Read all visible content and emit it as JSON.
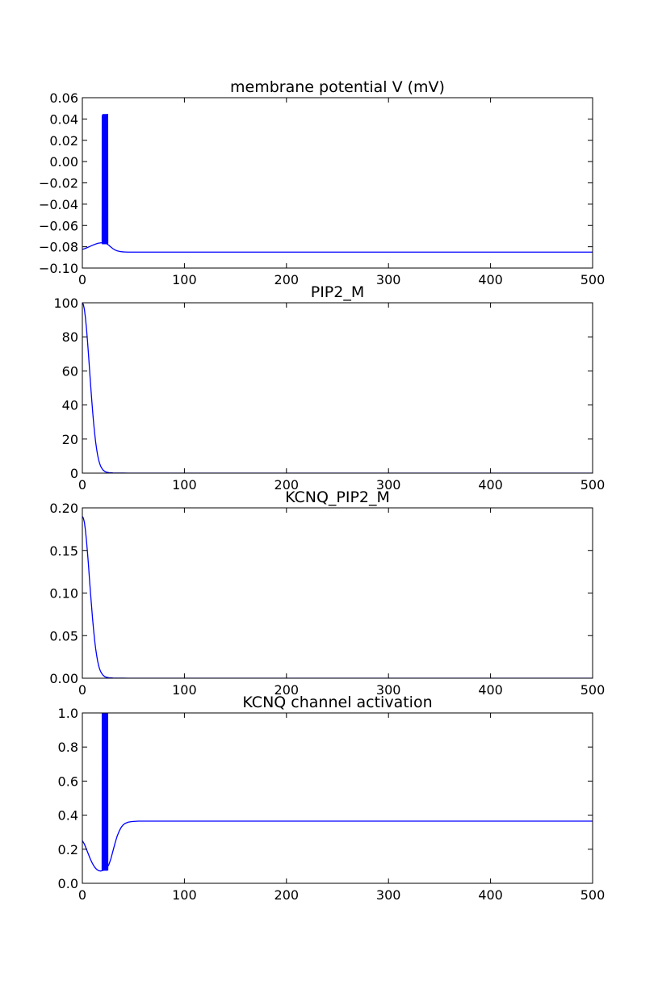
{
  "figure": {
    "line_color": "#0000ff",
    "background": "#ffffff",
    "axis_color": "#000000"
  },
  "chart_data": [
    {
      "type": "line",
      "title": "membrane potential V (mV)",
      "xlim": [
        0,
        500
      ],
      "ylim": [
        -0.1,
        0.06
      ],
      "xticks": [
        0,
        100,
        200,
        300,
        400,
        500
      ],
      "yticks": [
        -0.1,
        -0.08,
        -0.06,
        -0.04,
        -0.02,
        0.0,
        0.02,
        0.04,
        0.06
      ],
      "xtick_labels": [
        "0",
        "100",
        "200",
        "300",
        "400",
        "500"
      ],
      "ytick_labels": [
        "−0.10",
        "−0.08",
        "−0.06",
        "−0.04",
        "−0.02",
        "0.00",
        "0.02",
        "0.04",
        "0.06"
      ],
      "grid": false,
      "series": [
        {
          "x": [
            0,
            3,
            6,
            9,
            12,
            15,
            18,
            20,
            21,
            22,
            23,
            24,
            25,
            26,
            27,
            28,
            30,
            32,
            34,
            36,
            38,
            40,
            42,
            45,
            48,
            50,
            55,
            60,
            80,
            100,
            150,
            200,
            250,
            300,
            350,
            400,
            450,
            500
          ],
          "y": [
            -0.0825,
            -0.0815,
            -0.0803,
            -0.079,
            -0.0778,
            -0.0768,
            -0.0763,
            -0.0763,
            -0.0764,
            -0.0766,
            -0.0769,
            -0.0773,
            -0.0779,
            -0.0786,
            -0.0795,
            -0.0803,
            -0.0818,
            -0.083,
            -0.0838,
            -0.0843,
            -0.0846,
            -0.0848,
            -0.0849,
            -0.085,
            -0.085,
            -0.085,
            -0.085,
            -0.085,
            -0.085,
            -0.085,
            -0.085,
            -0.085,
            -0.085,
            -0.085,
            -0.085,
            -0.085,
            -0.085,
            -0.085
          ]
        },
        {
          "type": "spikes",
          "x_start": 19.5,
          "x_end": 24.5,
          "count": 9,
          "y_low": -0.077,
          "y_high": [
            0.043,
            0.044,
            0.042,
            0.044,
            0.043,
            0.044,
            0.043,
            0.044,
            0.044
          ]
        }
      ]
    },
    {
      "type": "line",
      "title": "PIP2_M",
      "xlim": [
        0,
        500
      ],
      "ylim": [
        0,
        100
      ],
      "xticks": [
        0,
        100,
        200,
        300,
        400,
        500
      ],
      "yticks": [
        0,
        20,
        40,
        60,
        80,
        100
      ],
      "xtick_labels": [
        "0",
        "100",
        "200",
        "300",
        "400",
        "500"
      ],
      "ytick_labels": [
        "0",
        "20",
        "40",
        "60",
        "80",
        "100"
      ],
      "grid": false,
      "series": [
        {
          "x": [
            0,
            1,
            2,
            3,
            4,
            5,
            6,
            7,
            8,
            9,
            10,
            11,
            12,
            13,
            14,
            15,
            16,
            17,
            18,
            20,
            22,
            24,
            26,
            28,
            30,
            35,
            40,
            45,
            50,
            60,
            80,
            100,
            200,
            300,
            400,
            500
          ],
          "y": [
            100,
            99.0,
            96.1,
            91.4,
            85.2,
            77.9,
            69.8,
            61.3,
            52.7,
            44.5,
            36.8,
            29.8,
            23.7,
            18.4,
            14.1,
            10.5,
            7.7,
            5.6,
            4.0,
            2.0,
            1.0,
            0.5,
            0.3,
            0.2,
            0.1,
            0.05,
            0.02,
            0.01,
            0,
            0,
            0,
            0,
            0,
            0,
            0,
            0
          ]
        }
      ]
    },
    {
      "type": "line",
      "title": "KCNQ_PIP2_M",
      "xlim": [
        0,
        500
      ],
      "ylim": [
        0,
        0.2
      ],
      "xticks": [
        0,
        100,
        200,
        300,
        400,
        500
      ],
      "yticks": [
        0,
        0.05,
        0.1,
        0.15,
        0.2
      ],
      "xtick_labels": [
        "0",
        "100",
        "200",
        "300",
        "400",
        "500"
      ],
      "ytick_labels": [
        "0.00",
        "0.05",
        "0.10",
        "0.15",
        "0.20"
      ],
      "grid": false,
      "series": [
        {
          "x": [
            0,
            1,
            2,
            3,
            4,
            5,
            6,
            7,
            8,
            9,
            10,
            11,
            12,
            13,
            14,
            15,
            16,
            17,
            18,
            20,
            22,
            24,
            26,
            28,
            30,
            35,
            40,
            45,
            50,
            60,
            80,
            100,
            200,
            300,
            400,
            500
          ],
          "y": [
            0.19,
            0.188,
            0.183,
            0.174,
            0.162,
            0.148,
            0.133,
            0.116,
            0.1,
            0.085,
            0.07,
            0.057,
            0.045,
            0.035,
            0.027,
            0.02,
            0.0146,
            0.0106,
            0.0076,
            0.0038,
            0.0019,
            0.001,
            0.0006,
            0.0004,
            0.0002,
            0.0001,
            5e-05,
            2e-05,
            0,
            0,
            0,
            0,
            0,
            0,
            0,
            0
          ]
        }
      ]
    },
    {
      "type": "line",
      "title": "KCNQ channel activation",
      "xlim": [
        0,
        500
      ],
      "ylim": [
        0,
        1
      ],
      "xticks": [
        0,
        100,
        200,
        300,
        400,
        500
      ],
      "yticks": [
        0,
        0.2,
        0.4,
        0.6,
        0.8,
        1.0
      ],
      "xtick_labels": [
        "0",
        "100",
        "200",
        "300",
        "400",
        "500"
      ],
      "ytick_labels": [
        "0.0",
        "0.2",
        "0.4",
        "0.6",
        "0.8",
        "1.0"
      ],
      "grid": false,
      "series": [
        {
          "x": [
            0,
            2,
            4,
            6,
            8,
            10,
            12,
            14,
            16,
            18,
            20,
            22,
            24,
            26,
            28,
            30,
            32,
            34,
            36,
            38,
            40,
            42,
            45,
            48,
            50,
            55,
            60,
            70,
            80,
            100,
            150,
            200,
            300,
            400,
            500
          ],
          "y": [
            0.25,
            0.23,
            0.2,
            0.17,
            0.14,
            0.115,
            0.095,
            0.082,
            0.074,
            0.072,
            0.075,
            0.08,
            0.09,
            0.11,
            0.145,
            0.19,
            0.235,
            0.275,
            0.305,
            0.328,
            0.343,
            0.352,
            0.359,
            0.362,
            0.363,
            0.365,
            0.365,
            0.365,
            0.365,
            0.365,
            0.365,
            0.365,
            0.365,
            0.365,
            0.365
          ]
        },
        {
          "type": "spikes",
          "x_start": 19.5,
          "x_end": 24.5,
          "count": 9,
          "y_low": 0.078,
          "y_high": [
            1.0,
            1.0,
            1.0,
            1.0,
            1.0,
            1.0,
            1.0,
            1.0,
            1.0
          ]
        }
      ]
    }
  ]
}
